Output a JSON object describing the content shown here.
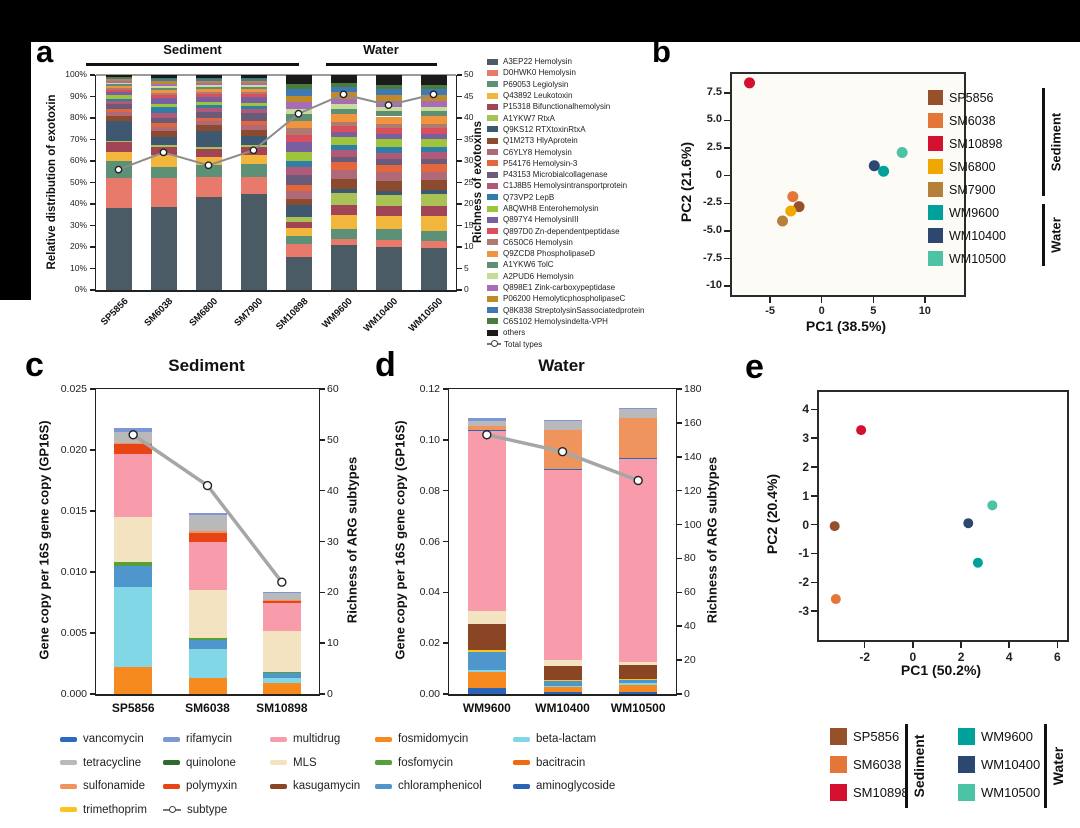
{
  "samples": {
    "SP5856": {
      "color": "#96502a"
    },
    "SM6038": {
      "color": "#e5763a"
    },
    "SM10898": {
      "color": "#d40f2f"
    },
    "SM6800": {
      "color": "#f0a800"
    },
    "SM7900": {
      "color": "#b5813a"
    },
    "WM9600": {
      "color": "#00a09b"
    },
    "WM10400": {
      "color": "#2c4770"
    },
    "WM10500": {
      "color": "#4cc3a4"
    }
  },
  "arg_classes": [
    {
      "name": "vancomycin",
      "color": "#2b6abf"
    },
    {
      "name": "tetracycline",
      "color": "#b9b9b9"
    },
    {
      "name": "sulfonamide",
      "color": "#f0945e"
    },
    {
      "name": "trimethoprim",
      "color": "#f7c51e"
    },
    {
      "name": "rifamycin",
      "color": "#7b97d8"
    },
    {
      "name": "quinolone",
      "color": "#2f6b2f"
    },
    {
      "name": "polymyxin",
      "color": "#e84517"
    },
    {
      "name": "multidrug",
      "color": "#f89bab"
    },
    {
      "name": "MLS",
      "color": "#f4e3c1"
    },
    {
      "name": "kasugamycin",
      "color": "#8a4524"
    },
    {
      "name": "fosmidomycin",
      "color": "#f68a1e"
    },
    {
      "name": "fosfomycin",
      "color": "#56a037"
    },
    {
      "name": "chloramphenicol",
      "color": "#4e96cc"
    },
    {
      "name": "beta-lactam",
      "color": "#82d7e6"
    },
    {
      "name": "bacitracin",
      "color": "#f26a10"
    },
    {
      "name": "aminoglycoside",
      "color": "#2a64b8"
    }
  ],
  "bottom_legend": {
    "columns": [
      [
        "vancomycin",
        "tetracycline",
        "sulfonamide",
        "trimethoprim"
      ],
      [
        "rifamycin",
        "quinolone",
        "polymyxin",
        "subtype"
      ],
      [
        "multidrug",
        "MLS",
        "kasugamycin"
      ],
      [
        "fosmidomycin",
        "fosfomycin",
        "chloramphenicol"
      ],
      [
        "beta-lactam",
        "bacitracin",
        "aminoglycoside"
      ]
    ],
    "subtype_label": "subtype"
  },
  "chart_data": [
    {
      "id": "a",
      "panel_label": "a",
      "type": "stacked-bar-line",
      "groups": [
        {
          "label": "Sediment"
        },
        {
          "label": "Water"
        }
      ],
      "left_axis_label": "Relative distribution of exotoxin",
      "right_axis_label": "Richness of exotoxins",
      "left_ticks": [
        "0%",
        "10%",
        "20%",
        "30%",
        "40%",
        "50%",
        "60%",
        "70%",
        "80%",
        "90%",
        "100%"
      ],
      "right_ticks": [
        "0",
        "5",
        "10",
        "15",
        "20",
        "25",
        "30",
        "35",
        "40",
        "45",
        "50"
      ],
      "categories": [
        "SP5856",
        "SM6038",
        "SM6800",
        "SM7900",
        "SM10898",
        "WM9600",
        "WM10400",
        "WM10500"
      ],
      "series": [
        {
          "name": "A3EP22 Hemolysin",
          "color": "#4b5b66",
          "values": [
            38.5,
            39,
            43.5,
            45,
            15,
            20.5,
            19.5,
            19.5
          ]
        },
        {
          "name": "D0HWK0 Hemolysin",
          "color": "#e87a6c",
          "values": [
            14,
            13.5,
            9.5,
            8,
            6,
            3,
            3.5,
            3
          ]
        },
        {
          "name": "P69053 Legiolysin",
          "color": "#5c9077",
          "values": [
            8,
            5.5,
            5.5,
            6,
            4,
            4.5,
            5,
            4.5
          ]
        },
        {
          "name": "Q43892 Leukotoxin",
          "color": "#f3b63c",
          "values": [
            4,
            5.5,
            3.5,
            4.5,
            3.5,
            6.5,
            6,
            7
          ]
        },
        {
          "name": "P15318 Bifunctionalhemolysin",
          "color": "#a04456",
          "values": [
            4.5,
            3.5,
            4,
            3.5,
            3,
            4.5,
            4.5,
            4.5
          ]
        },
        {
          "name": "A1YKW7 RtxA",
          "color": "#a8c256",
          "values": [
            0.8,
            1,
            1,
            1,
            2,
            5.5,
            5,
            5.5
          ]
        },
        {
          "name": "Q9KS12 RTXtoxinRtxA",
          "color": "#3e5871",
          "values": [
            9,
            4,
            7.5,
            4.5,
            5.5,
            2,
            2,
            2
          ]
        },
        {
          "name": "Q1M2T3 HlyAprotein",
          "color": "#8c4a2f",
          "values": [
            2.5,
            2.5,
            2.5,
            2.5,
            3,
            4.5,
            4.5,
            4.5
          ]
        },
        {
          "name": "C6YLY8 Hemolysin",
          "color": "#b06a77",
          "values": [
            1.8,
            2,
            2,
            2.5,
            3.5,
            4,
            4,
            4
          ]
        },
        {
          "name": "P54176 Hemolysin-3",
          "color": "#e2673d",
          "values": [
            1.6,
            2,
            1.5,
            2,
            3,
            3.5,
            3.5,
            3.5
          ]
        },
        {
          "name": "P43153 Microbialcollagenase",
          "color": "#6b5b7a",
          "values": [
            2.2,
            2.5,
            2.5,
            3.5,
            4.5,
            2.5,
            2.5,
            2.5
          ]
        },
        {
          "name": "C1J8B5 Hemolysintransportprotein",
          "color": "#b05a78",
          "values": [
            1.4,
            2,
            2,
            2,
            3.5,
            3,
            3,
            3
          ]
        },
        {
          "name": "Q73VP2 LepB",
          "color": "#2e7ea8",
          "values": [
            1.2,
            3,
            1.5,
            1.5,
            3,
            2.5,
            2.5,
            2.5
          ]
        },
        {
          "name": "A8QWH8 Enterohemolysin",
          "color": "#9dc43b",
          "values": [
            1.8,
            1.5,
            1.5,
            1.5,
            4,
            3.5,
            3.5,
            3.5
          ]
        },
        {
          "name": "Q897Y4 HemolysinIII",
          "color": "#7a5fa0",
          "values": [
            1.2,
            2.5,
            2,
            2.5,
            4.5,
            2.5,
            2.5,
            2.5
          ]
        },
        {
          "name": "Q897D0 Zn-dependentpeptidase",
          "color": "#d94f5c",
          "values": [
            1,
            1.5,
            1.5,
            1.5,
            3.5,
            2.5,
            2.5,
            2.5
          ]
        },
        {
          "name": "C6S0C6 Hemolysin",
          "color": "#b07a6e",
          "values": [
            0.8,
            1,
            1,
            1,
            3,
            2,
            2,
            2
          ]
        },
        {
          "name": "Q9ZCD8 PhospholipaseD",
          "color": "#f09440",
          "values": [
            1.2,
            1.5,
            1.5,
            1.5,
            3.5,
            3.5,
            3.5,
            3.5
          ]
        },
        {
          "name": "A1YKW6 TolC",
          "color": "#5f8f72",
          "values": [
            0.8,
            1,
            1,
            1,
            3,
            2.5,
            2.5,
            2.5
          ]
        },
        {
          "name": "A2PUD6 Hemolysin",
          "color": "#c6dd9a",
          "values": [
            0.6,
            1,
            0.8,
            0.8,
            2.5,
            2,
            2,
            2
          ]
        },
        {
          "name": "Q898E1 Zink-carboxypeptidase",
          "color": "#a86bb5",
          "values": [
            0.8,
            1,
            1,
            1,
            3,
            2.5,
            2.5,
            2.5
          ]
        },
        {
          "name": "P06200 HemolyticphospholipaseC",
          "color": "#c08a28",
          "values": [
            0.8,
            1,
            1,
            1,
            3,
            3,
            3,
            3
          ]
        },
        {
          "name": "Q8K838 StreptolysinSassociatedprotein",
          "color": "#3e78b5",
          "values": [
            0.6,
            1,
            0.8,
            0.8,
            3,
            2.5,
            2.5,
            2.5
          ]
        },
        {
          "name": "C6S102 Hemolysindelta-VPH",
          "color": "#4a7d3d",
          "values": [
            0.4,
            0.5,
            0.6,
            0.6,
            2.5,
            2,
            2,
            2
          ]
        },
        {
          "name": "others",
          "color": "#1a1a1a",
          "values": [
            1,
            1.5,
            1.3,
            1.2,
            4,
            3.5,
            4.5,
            4.5
          ]
        }
      ],
      "line": {
        "name": "Total types",
        "color": "#8c8c8c",
        "max": 50,
        "values": [
          28,
          32,
          29,
          32.5,
          41,
          45.5,
          43,
          45.5
        ]
      }
    },
    {
      "id": "b",
      "panel_label": "b",
      "type": "scatter",
      "x_label": "PC1 (38.5%)",
      "y_label": "PC2 (21.6%)",
      "x_ticks": [
        "-5",
        "0",
        "5",
        "10"
      ],
      "x_tick_values": [
        -5,
        0,
        5,
        10
      ],
      "y_ticks": [
        "7.5",
        "5.0",
        "2.5",
        "0",
        "-2.5",
        "-5.0",
        "-7.5",
        "-10"
      ],
      "y_tick_values": [
        7.5,
        5,
        2.5,
        0,
        -2.5,
        -5,
        -7.5,
        -10
      ],
      "x_range": [
        -8.7,
        13.8
      ],
      "y_range": [
        -10.8,
        9.2
      ],
      "points": [
        {
          "sample": "SM10898",
          "x": -7.0,
          "y": 8.4
        },
        {
          "sample": "SM6038",
          "x": -2.8,
          "y": -1.9
        },
        {
          "sample": "SP5856",
          "x": -2.2,
          "y": -2.8
        },
        {
          "sample": "SM6800",
          "x": -3.0,
          "y": -3.2
        },
        {
          "sample": "SM7900",
          "x": -3.8,
          "y": -4.1
        },
        {
          "sample": "WM10400",
          "x": 5.1,
          "y": 0.9
        },
        {
          "sample": "WM9600",
          "x": 6.0,
          "y": 0.4
        },
        {
          "sample": "WM10500",
          "x": 7.8,
          "y": 2.1
        }
      ],
      "legend": {
        "groups": [
          {
            "label": "Sediment",
            "samples": [
              "SP5856",
              "SM6038",
              "SM10898",
              "SM6800",
              "SM7900"
            ]
          },
          {
            "label": "Water",
            "samples": [
              "WM9600",
              "WM10400",
              "WM10500"
            ]
          }
        ]
      }
    },
    {
      "id": "c",
      "panel_label": "c",
      "type": "stacked-bar-line",
      "title": "Sediment",
      "left_axis_label": "Gene copy per 16S gene copy  (GP16S)",
      "right_axis_label": "Richness of ARG subtypes",
      "left_ticks": [
        "0.000",
        "0.005",
        "0.010",
        "0.015",
        "0.020",
        "0.025"
      ],
      "right_ticks": [
        "0",
        "10",
        "20",
        "30",
        "40",
        "50",
        "60"
      ],
      "left_max": 0.025,
      "categories": [
        "SP5856",
        "SM6038",
        "SM10898"
      ],
      "series": [
        {
          "name": "fosmidomycin",
          "values": [
            0.0022,
            0.0013,
            0.0009
          ]
        },
        {
          "name": "beta-lactam",
          "values": [
            0.0066,
            0.0024,
            0.0004
          ]
        },
        {
          "name": "chloramphenicol",
          "values": [
            0.0017,
            0.0007,
            0.0004
          ]
        },
        {
          "name": "fosfomycin",
          "values": [
            0.0003,
            0.0002,
            0.0001
          ]
        },
        {
          "name": "MLS",
          "values": [
            0.0037,
            0.0039,
            0.0034
          ]
        },
        {
          "name": "multidrug",
          "values": [
            0.0052,
            0.004,
            0.0023
          ]
        },
        {
          "name": "polymyxin",
          "values": [
            0.0008,
            0.0007,
            0.0001
          ]
        },
        {
          "name": "sulfonamide",
          "values": [
            0.0001,
            0.0002,
            0.0001
          ]
        },
        {
          "name": "tetracycline",
          "values": [
            0.0009,
            0.0013,
            0.0006
          ]
        },
        {
          "name": "rifamycin",
          "values": [
            0.0003,
            0.0001,
            0.0001
          ]
        }
      ],
      "line": {
        "name": "subtype",
        "color": "#a6a6a6",
        "max": 60,
        "values": [
          51,
          41,
          22
        ]
      }
    },
    {
      "id": "d",
      "panel_label": "d",
      "type": "stacked-bar-line",
      "title": "Water",
      "left_axis_label": "Gene copy per 16S gene copy  (GP16S)",
      "right_axis_label": "Richness of ARG subtypes",
      "left_ticks": [
        "0.00",
        "0.02",
        "0.04",
        "0.06",
        "0.08",
        "0.10",
        "0.12"
      ],
      "right_ticks": [
        "0",
        "20",
        "40",
        "60",
        "80",
        "100",
        "120",
        "140",
        "160",
        "180"
      ],
      "left_max": 0.12,
      "categories": [
        "WM9600",
        "WM10400",
        "WM10500"
      ],
      "series": [
        {
          "name": "aminoglycoside",
          "values": [
            0.0022,
            0.0008,
            0.0006
          ]
        },
        {
          "name": "fosmidomycin",
          "values": [
            0.0063,
            0.0018,
            0.003
          ]
        },
        {
          "name": "beta-lactam",
          "values": [
            0.0008,
            0.0006,
            0.0006
          ]
        },
        {
          "name": "chloramphenicol",
          "values": [
            0.0072,
            0.0018,
            0.0012
          ]
        },
        {
          "name": "trimethoprim",
          "values": [
            0.0008,
            0.0005,
            0.0004
          ]
        },
        {
          "name": "kasugamycin",
          "values": [
            0.0102,
            0.0055,
            0.0058
          ]
        },
        {
          "name": "MLS",
          "values": [
            0.005,
            0.0025,
            0.001
          ]
        },
        {
          "name": "multidrug",
          "values": [
            0.071,
            0.0745,
            0.08
          ]
        },
        {
          "name": "vancomycin",
          "values": [
            0.0005,
            0.0005,
            0.0004
          ]
        },
        {
          "name": "sulfonamide",
          "values": [
            0.0015,
            0.0155,
            0.0155
          ]
        },
        {
          "name": "tetracycline",
          "values": [
            0.002,
            0.0035,
            0.0035
          ]
        },
        {
          "name": "rifamycin",
          "values": [
            0.001,
            0.0005,
            0.0005
          ]
        }
      ],
      "line": {
        "name": "subtype",
        "color": "#a6a6a6",
        "max": 180,
        "values": [
          153,
          143,
          126
        ]
      }
    },
    {
      "id": "e",
      "panel_label": "e",
      "type": "scatter",
      "x_label": "PC1 (50.2%)",
      "y_label": "PC2 (20.4%)",
      "x_ticks": [
        "-2",
        "0",
        "2",
        "4",
        "6"
      ],
      "x_tick_values": [
        -2,
        0,
        2,
        4,
        6
      ],
      "y_ticks": [
        "4",
        "3",
        "2",
        "1",
        "0",
        "-1",
        "-2",
        "-3"
      ],
      "y_tick_values": [
        4,
        3,
        2,
        1,
        0,
        -1,
        -2,
        -3
      ],
      "x_range": [
        -3.9,
        6.4
      ],
      "y_range": [
        -4.0,
        4.6
      ],
      "points": [
        {
          "sample": "SM10898",
          "x": -2.15,
          "y": 3.28
        },
        {
          "sample": "SP5856",
          "x": -3.25,
          "y": -0.05
        },
        {
          "sample": "SM6038",
          "x": -3.2,
          "y": -2.58
        },
        {
          "sample": "WM10400",
          "x": 2.3,
          "y": 0.05
        },
        {
          "sample": "WM9600",
          "x": 2.7,
          "y": -1.32
        },
        {
          "sample": "WM10500",
          "x": 3.3,
          "y": 0.67
        }
      ],
      "legend": {
        "groups": [
          {
            "label": "Sediment",
            "samples": [
              "SP5856",
              "SM6038",
              "SM10898"
            ]
          },
          {
            "label": "Water",
            "samples": [
              "WM9600",
              "WM10400",
              "WM10500"
            ]
          }
        ]
      }
    }
  ]
}
